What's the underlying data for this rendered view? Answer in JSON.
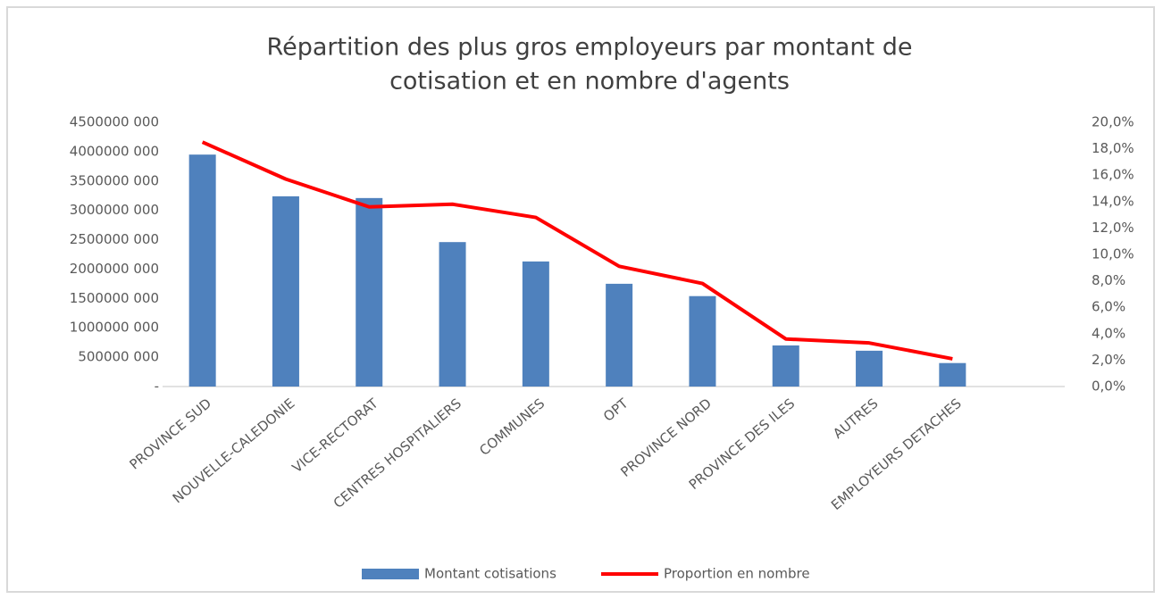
{
  "chart_data": {
    "type": "bar-line",
    "title": [
      "Répartition des plus gros employeurs par montant de",
      "cotisation et en nombre d'agents"
    ],
    "categories": [
      "PROVINCE SUD",
      "NOUVELLE-CALEDONIE",
      "VICE-RECTORAT",
      "CENTRES HOSPITALIERS",
      "COMMUNES",
      "OPT",
      "PROVINCE NORD",
      "PROVINCE DES ILES",
      "AUTRES",
      "EMPLOYEURS DETACHES"
    ],
    "series": [
      {
        "name": "Montant cotisations",
        "type": "bar",
        "color": "#4f81bd",
        "axis": "y",
        "values": [
          3950000000,
          3240000000,
          3210000000,
          2460000000,
          2130000000,
          1750000000,
          1540000000,
          700000000,
          610000000,
          400000000
        ]
      },
      {
        "name": "Proportion en nombre",
        "type": "line",
        "color": "#ff0000",
        "axis": "y2",
        "values": [
          18.5,
          15.7,
          13.6,
          13.8,
          12.8,
          9.1,
          7.8,
          3.6,
          3.3,
          2.1
        ]
      }
    ],
    "ylim": [
      0,
      4500000000
    ],
    "yticks": [
      {
        "value": 0,
        "label": "-"
      },
      {
        "value": 500000000,
        "label": "500000 000"
      },
      {
        "value": 1000000000,
        "label": "1000000 000"
      },
      {
        "value": 1500000000,
        "label": "1500000 000"
      },
      {
        "value": 2000000000,
        "label": "2000000 000"
      },
      {
        "value": 2500000000,
        "label": "2500000 000"
      },
      {
        "value": 3000000000,
        "label": "3000000 000"
      },
      {
        "value": 3500000000,
        "label": "3500000 000"
      },
      {
        "value": 4000000000,
        "label": "4000000 000"
      },
      {
        "value": 4500000000,
        "label": "4500000 000"
      }
    ],
    "y2lim": [
      0,
      20
    ],
    "y2ticks": [
      {
        "value": 0,
        "label": "0,0%"
      },
      {
        "value": 2,
        "label": "2,0%"
      },
      {
        "value": 4,
        "label": "4,0%"
      },
      {
        "value": 6,
        "label": "6,0%"
      },
      {
        "value": 8,
        "label": "8,0%"
      },
      {
        "value": 10,
        "label": "10,0%"
      },
      {
        "value": 12,
        "label": "12,0%"
      },
      {
        "value": 14,
        "label": "14,0%"
      },
      {
        "value": 16,
        "label": "16,0%"
      },
      {
        "value": 18,
        "label": "18,0%"
      },
      {
        "value": 20,
        "label": "20,0%"
      }
    ],
    "legend": "bottom"
  }
}
